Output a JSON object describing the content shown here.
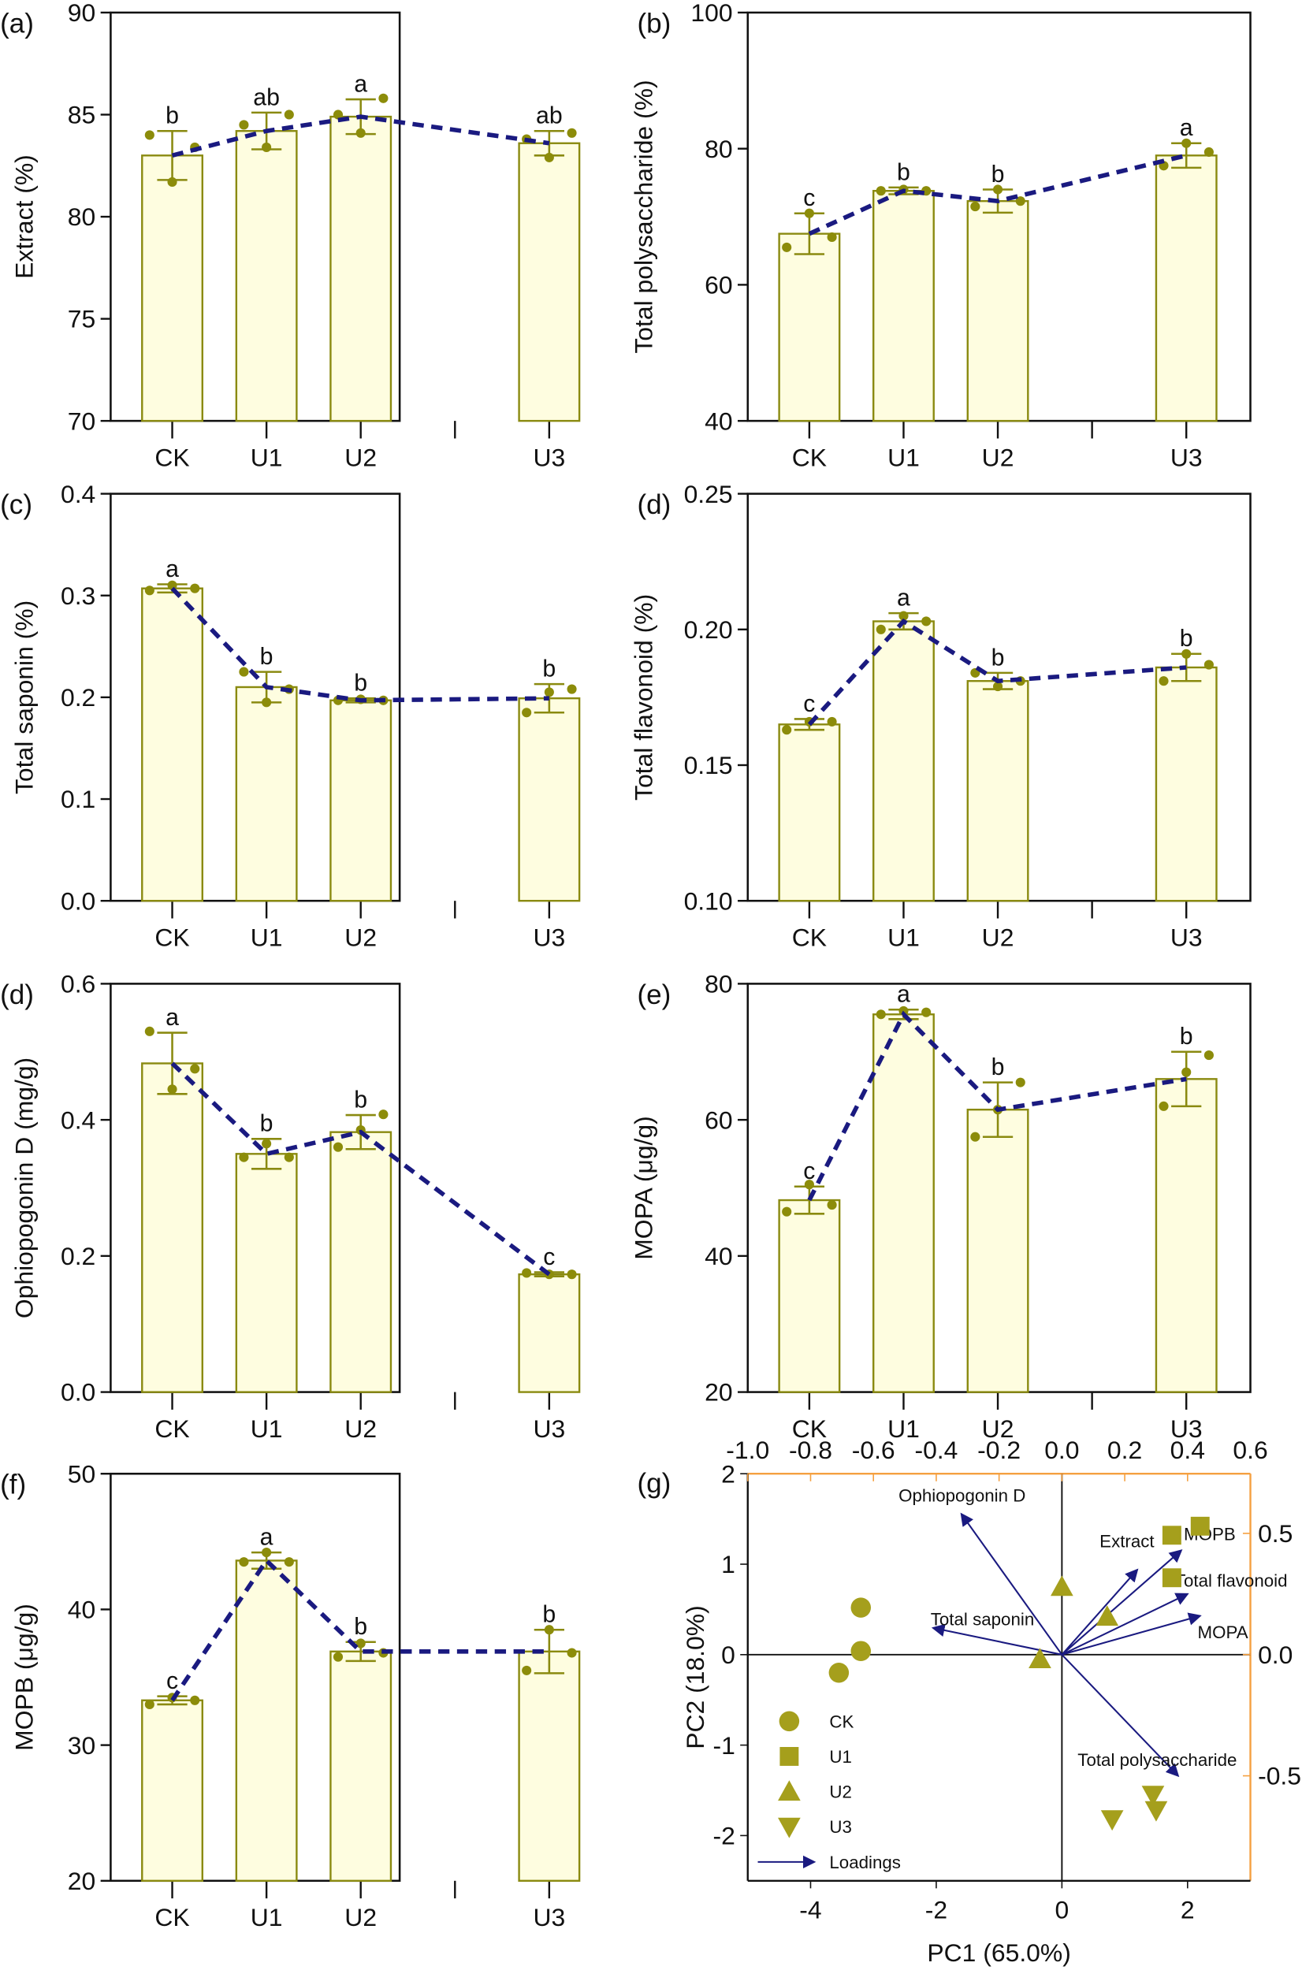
{
  "colors": {
    "bar_fill": "#fefde0",
    "bar_stroke": "#8a8a10",
    "dot": "#8c8c0a",
    "trend": "#1a1a80",
    "pca_marker": "#a59f1c",
    "loading": "#1a1a80",
    "secondary_axis": "#f5a040"
  },
  "chart_data": [
    {
      "type": "bar",
      "panel": "(a)",
      "ylabel": "Extract (%)",
      "categories": [
        "CK",
        "U1",
        "U2",
        "U3"
      ],
      "ylim": [
        70,
        90
      ],
      "yticks": [
        70,
        75,
        80,
        85,
        90
      ],
      "ytick_labels": [
        "70",
        "75",
        "80",
        "85",
        "90"
      ],
      "values": [
        83.0,
        84.2,
        84.9,
        83.6
      ],
      "errors": [
        1.2,
        0.9,
        0.85,
        0.6
      ],
      "points": [
        [
          84.0,
          81.7,
          83.4
        ],
        [
          84.5,
          83.4,
          85.0
        ],
        [
          85.0,
          84.1,
          85.8
        ],
        [
          83.8,
          82.9,
          84.1
        ]
      ],
      "letters": [
        "b",
        "ab",
        "a",
        "ab"
      ]
    },
    {
      "type": "bar",
      "panel": "(b)",
      "ylabel": "Total polysaccharide (%)",
      "categories": [
        "CK",
        "U1",
        "U2",
        "U3"
      ],
      "ylim": [
        40,
        100
      ],
      "yticks": [
        40,
        60,
        80,
        100
      ],
      "ytick_labels": [
        "40",
        "60",
        "80",
        "100"
      ],
      "values": [
        67.5,
        73.8,
        72.3,
        79.0
      ],
      "errors": [
        3.0,
        0.5,
        1.7,
        1.8
      ],
      "points": [
        [
          65.5,
          70.5,
          67.0
        ],
        [
          73.8,
          74.0,
          73.8
        ],
        [
          71.5,
          74.0,
          72.3
        ],
        [
          77.5,
          80.8,
          79.5
        ]
      ],
      "letters": [
        "c",
        "b",
        "b",
        "a"
      ]
    },
    {
      "type": "bar",
      "panel": "(c)",
      "ylabel": "Total saponin (%)",
      "categories": [
        "CK",
        "U1",
        "U2",
        "U3"
      ],
      "ylim": [
        0,
        0.4
      ],
      "yticks": [
        0,
        0.1,
        0.2,
        0.3,
        0.4
      ],
      "ytick_labels": [
        "0.0",
        "0.1",
        "0.2",
        "0.3",
        "0.4"
      ],
      "values": [
        0.307,
        0.21,
        0.197,
        0.199
      ],
      "errors": [
        0.004,
        0.015,
        0.002,
        0.014
      ],
      "points": [
        [
          0.305,
          0.31,
          0.307
        ],
        [
          0.225,
          0.195,
          0.208
        ],
        [
          0.197,
          0.198,
          0.197
        ],
        [
          0.185,
          0.205,
          0.208
        ]
      ],
      "letters": [
        "a",
        "b",
        "b",
        "b"
      ]
    },
    {
      "type": "bar",
      "panel": "(d)",
      "ylabel": "Total flavonoid (%)",
      "categories": [
        "CK",
        "U1",
        "U2",
        "U3"
      ],
      "ylim": [
        0.1,
        0.25
      ],
      "yticks": [
        0.1,
        0.15,
        0.2,
        0.25
      ],
      "ytick_labels": [
        "0.10",
        "0.15",
        "0.20",
        "0.25"
      ],
      "values": [
        0.165,
        0.203,
        0.181,
        0.186
      ],
      "errors": [
        0.002,
        0.003,
        0.003,
        0.005
      ],
      "points": [
        [
          0.163,
          0.166,
          0.166
        ],
        [
          0.2,
          0.205,
          0.203
        ],
        [
          0.184,
          0.179,
          0.181
        ],
        [
          0.181,
          0.191,
          0.187
        ]
      ],
      "letters": [
        "c",
        "a",
        "b",
        "b"
      ]
    },
    {
      "type": "bar",
      "panel": "(d)",
      "ylabel": "Ophiopogonin D (mg/g)",
      "categories": [
        "CK",
        "U1",
        "U2",
        "U3"
      ],
      "ylim": [
        0,
        0.6
      ],
      "yticks": [
        0,
        0.2,
        0.4,
        0.6
      ],
      "ytick_labels": [
        "0.0",
        "0.2",
        "0.4",
        "0.6"
      ],
      "values": [
        0.483,
        0.35,
        0.382,
        0.173
      ],
      "errors": [
        0.045,
        0.022,
        0.025,
        0.003
      ],
      "points": [
        [
          0.53,
          0.445,
          0.475
        ],
        [
          0.345,
          0.365,
          0.345
        ],
        [
          0.36,
          0.385,
          0.408
        ],
        [
          0.175,
          0.173,
          0.173
        ]
      ],
      "letters": [
        "a",
        "b",
        "b",
        "c"
      ]
    },
    {
      "type": "bar",
      "panel": "(e)",
      "ylabel": "MOPA (μg/g)",
      "categories": [
        "CK",
        "U1",
        "U2",
        "U3"
      ],
      "ylim": [
        20,
        80
      ],
      "yticks": [
        20,
        40,
        60,
        80
      ],
      "ytick_labels": [
        "20",
        "40",
        "60",
        "80"
      ],
      "values": [
        48.2,
        75.5,
        61.5,
        66.0
      ],
      "errors": [
        2.0,
        0.7,
        4.0,
        4.0
      ],
      "points": [
        [
          46.5,
          50.5,
          47.5
        ],
        [
          75.5,
          76.0,
          75.8
        ],
        [
          57.5,
          61.5,
          65.5
        ],
        [
          62.0,
          67.0,
          69.5
        ]
      ],
      "letters": [
        "c",
        "a",
        "b",
        "b"
      ]
    },
    {
      "type": "bar",
      "panel": "(f)",
      "ylabel": "MOPB (μg/g)",
      "categories": [
        "CK",
        "U1",
        "U2",
        "U3"
      ],
      "ylim": [
        20,
        50
      ],
      "yticks": [
        20,
        30,
        40,
        50
      ],
      "ytick_labels": [
        "20",
        "30",
        "40",
        "50"
      ],
      "values": [
        33.3,
        43.6,
        36.9,
        36.9
      ],
      "errors": [
        0.3,
        0.6,
        0.7,
        1.6
      ],
      "points": [
        [
          33.0,
          33.5,
          33.3
        ],
        [
          43.5,
          44.2,
          43.5
        ],
        [
          36.5,
          37.5,
          36.8
        ],
        [
          35.5,
          38.5,
          36.8
        ]
      ],
      "letters": [
        "c",
        "a",
        "b",
        "b"
      ]
    },
    {
      "type": "scatter",
      "panel": "(g)",
      "xlabel": "PC1 (65.0%)",
      "ylabel": "PC2 (18.0%)",
      "xlim": [
        -5,
        3
      ],
      "ylim": [
        -2.5,
        2
      ],
      "xticks": [
        -4,
        -2,
        0,
        2
      ],
      "xtick_labels": [
        "-4",
        "-2",
        "0",
        "2"
      ],
      "yticks": [
        -2,
        -1,
        0,
        1,
        2
      ],
      "ytick_labels": [
        "-2",
        "-1",
        "0",
        "1",
        "2"
      ],
      "top_axis": {
        "lim": [
          -1.0,
          0.6
        ],
        "ticks": [
          -1.0,
          -0.8,
          -0.6,
          -0.4,
          -0.2,
          0.0,
          0.2,
          0.4,
          0.6
        ],
        "labels": [
          "-1.0",
          "-0.8",
          "-0.6",
          "-0.4",
          "-0.2",
          "0.0",
          "0.2",
          "0.4",
          "0.6"
        ]
      },
      "right_axis": {
        "lim": [
          -0.933,
          0.746
        ],
        "ticks": [
          -0.5,
          0.0,
          0.5
        ],
        "labels": [
          "-0.5",
          "0.0",
          "0.5"
        ]
      },
      "groups": [
        {
          "name": "CK",
          "marker": "circle",
          "points": [
            [
              -3.2,
              0.52
            ],
            [
              -3.2,
              0.04
            ],
            [
              -3.55,
              -0.2
            ]
          ]
        },
        {
          "name": "U1",
          "marker": "square",
          "points": [
            [
              1.75,
              1.32
            ],
            [
              2.2,
              1.42
            ],
            [
              1.75,
              0.85
            ]
          ]
        },
        {
          "name": "U2",
          "marker": "triangle-up",
          "points": [
            [
              0.0,
              0.75
            ],
            [
              0.72,
              0.42
            ],
            [
              -0.35,
              -0.05
            ]
          ]
        },
        {
          "name": "U3",
          "marker": "triangle-down",
          "points": [
            [
              0.8,
              -1.82
            ],
            [
              1.45,
              -1.55
            ],
            [
              1.5,
              -1.72
            ]
          ]
        }
      ],
      "loadings": [
        {
          "name": "Ophiopogonin D",
          "x": -0.32,
          "y": 0.58
        },
        {
          "name": "Total saponin",
          "x": -0.41,
          "y": 0.11
        },
        {
          "name": "Extract",
          "x": 0.24,
          "y": 0.35
        },
        {
          "name": "MOPB",
          "x": 0.38,
          "y": 0.43
        },
        {
          "name": "Total flavonoid",
          "x": 0.4,
          "y": 0.25
        },
        {
          "name": "MOPA",
          "x": 0.44,
          "y": 0.16
        },
        {
          "name": "Total polysaccharide",
          "x": 0.37,
          "y": -0.5
        }
      ],
      "legend": {
        "placement": "bottom-left",
        "entries": [
          "CK",
          "U1",
          "U2",
          "U3"
        ],
        "loadings_label": "Loadings"
      }
    }
  ]
}
